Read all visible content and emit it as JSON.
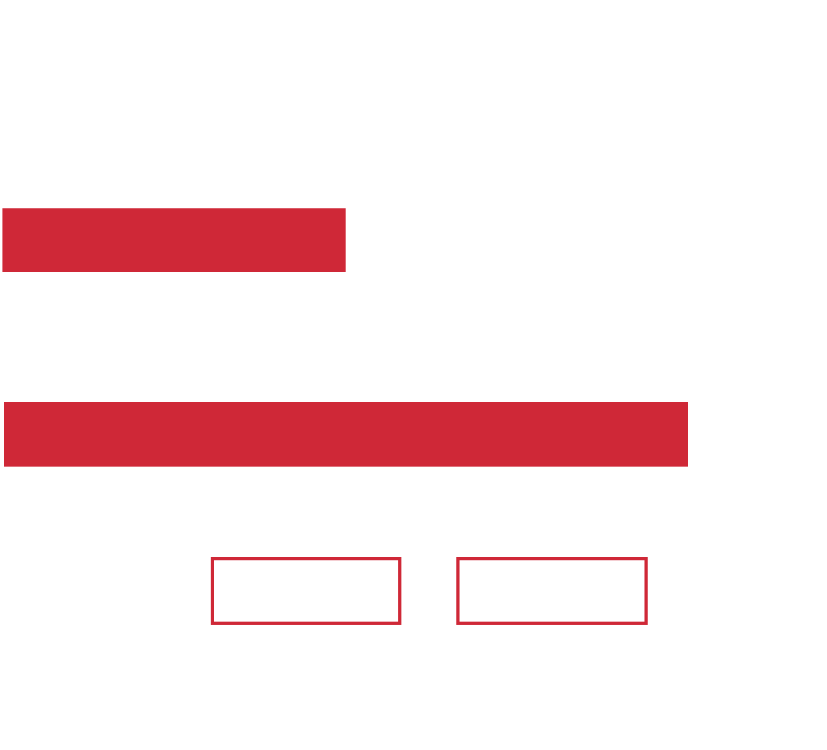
{
  "colors": {
    "accent": "#cf2837",
    "background": "#ffffff"
  },
  "elements": {
    "bars": [
      {
        "name": "placeholder-bar-short",
        "fill": "solid"
      },
      {
        "name": "placeholder-bar-long",
        "fill": "solid"
      }
    ],
    "boxes": [
      {
        "name": "outlined-box-left",
        "fill": "outline"
      },
      {
        "name": "outlined-box-right",
        "fill": "outline"
      }
    ]
  }
}
